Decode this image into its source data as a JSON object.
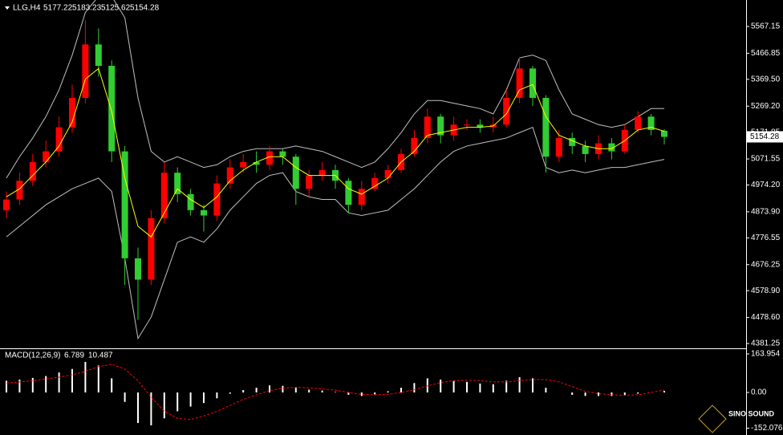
{
  "chart_data": [
    {
      "type": "candlestick",
      "title": "LLG,H4",
      "header_values": [
        5177.22,
        5183.23,
        5125.62,
        5154.28
      ],
      "last": 5154.28,
      "up_color": "#ff0000",
      "down_color": "#32cd32",
      "ma_color": "#ffff00",
      "band_color": "#c0c0c0",
      "ylim": [
        4366.2,
        5666.2
      ],
      "yticks": [
        5567.15,
        5466.85,
        {
          "value": 5369.5,
          "label": "5369.50"
        },
        {
          "value": 5269.2,
          "label": "5269.20"
        },
        5171.85,
        5071.55,
        {
          "value": 4974.2,
          "label": "4974.20"
        },
        {
          "value": 4873.9,
          "label": "4873.90"
        },
        4776.55,
        4676.25,
        {
          "value": 4578.9,
          "label": "4578.90"
        },
        {
          "value": 4478.6,
          "label": "4478.60"
        },
        4381.25
      ],
      "open": [
        4880,
        4920,
        4990,
        5060,
        5100,
        5190,
        5300,
        5500,
        5420,
        5100,
        4700,
        4620,
        4850,
        5020,
        4940,
        4880,
        4860,
        4980,
        5040,
        5060,
        5050,
        5100,
        5080,
        4960,
        5010,
        5030,
        4990,
        4900,
        4960,
        5000,
        5030,
        5090,
        5150,
        5230,
        5160,
        5200,
        5200,
        5190,
        5200,
        5300,
        5410,
        5300,
        5080,
        5150,
        5120,
        5090,
        5130,
        5100,
        5180,
        5230,
        5177.22
      ],
      "high": [
        4950,
        5020,
        5090,
        5140,
        5230,
        5350,
        5590,
        5560,
        5440,
        5120,
        4740,
        4880,
        5060,
        5040,
        4960,
        4900,
        5010,
        5070,
        5090,
        5100,
        5120,
        5110,
        5090,
        5030,
        5060,
        5050,
        5000,
        4990,
        5020,
        5050,
        5110,
        5180,
        5260,
        5240,
        5230,
        5220,
        5220,
        5230,
        5330,
        5450,
        5420,
        5310,
        5180,
        5170,
        5140,
        5160,
        5150,
        5200,
        5250,
        5240,
        5183.23
      ],
      "low": [
        4850,
        4900,
        4970,
        5040,
        5080,
        5170,
        5280,
        5380,
        5060,
        4600,
        4470,
        4600,
        4830,
        4910,
        4860,
        4800,
        4840,
        4960,
        5020,
        5020,
        5030,
        5050,
        4900,
        4930,
        4990,
        4960,
        4870,
        4880,
        4950,
        4980,
        5020,
        5080,
        5130,
        5130,
        5140,
        5180,
        5170,
        5170,
        5190,
        5280,
        5270,
        5020,
        5060,
        5090,
        5060,
        5070,
        5070,
        5090,
        5170,
        5160,
        5125.62
      ],
      "close": [
        4920,
        4990,
        5060,
        5100,
        5190,
        5300,
        5500,
        5420,
        5100,
        4700,
        4620,
        4850,
        5020,
        4940,
        4880,
        4860,
        4980,
        5040,
        5060,
        5050,
        5100,
        5080,
        4960,
        5010,
        5030,
        4990,
        4900,
        4960,
        5000,
        5030,
        5090,
        5150,
        5230,
        5160,
        5200,
        5200,
        5190,
        5200,
        5300,
        5410,
        5300,
        5080,
        5150,
        5120,
        5090,
        5130,
        5100,
        5180,
        5230,
        5180,
        5154.28
      ],
      "ma": [
        4930,
        4960,
        5010,
        5060,
        5120,
        5210,
        5370,
        5410,
        5250,
        5000,
        4820,
        4780,
        4870,
        4960,
        4920,
        4890,
        4930,
        4990,
        5030,
        5060,
        5080,
        5080,
        5040,
        5010,
        5010,
        5010,
        4960,
        4940,
        4970,
        5000,
        5060,
        5100,
        5160,
        5170,
        5180,
        5190,
        5190,
        5195,
        5240,
        5330,
        5350,
        5230,
        5160,
        5140,
        5120,
        5110,
        5110,
        5140,
        5180,
        5190,
        5175
      ],
      "band_upper": [
        5000,
        5080,
        5150,
        5230,
        5330,
        5460,
        5620,
        5680,
        5680,
        5600,
        5300,
        5100,
        5060,
        5080,
        5060,
        5040,
        5050,
        5080,
        5100,
        5110,
        5110,
        5110,
        5120,
        5110,
        5100,
        5080,
        5060,
        5040,
        5060,
        5110,
        5170,
        5240,
        5290,
        5290,
        5280,
        5270,
        5260,
        5240,
        5330,
        5450,
        5460,
        5440,
        5330,
        5240,
        5220,
        5200,
        5190,
        5200,
        5230,
        5260,
        5260
      ],
      "band_lower": [
        4780,
        4820,
        4860,
        4900,
        4930,
        4960,
        4980,
        5000,
        4950,
        4700,
        4400,
        4480,
        4620,
        4760,
        4780,
        4760,
        4810,
        4880,
        4930,
        4980,
        5010,
        5020,
        4950,
        4930,
        4920,
        4920,
        4870,
        4860,
        4870,
        4880,
        4920,
        4960,
        5010,
        5060,
        5100,
        5120,
        5130,
        5140,
        5150,
        5170,
        5190,
        5040,
        5020,
        5030,
        5020,
        5030,
        5040,
        5040,
        5050,
        5060,
        5070
      ],
      "logo": "SINO SOUND"
    },
    {
      "type": "macd",
      "title": "MACD(12,26,9)",
      "header_values": [
        6.789,
        10.487
      ],
      "hist_color": "#ffffff",
      "signal_color": "#ff0000",
      "ylim": [
        -174.2,
        181.03
      ],
      "yticks": [
        163.954,
        {
          "value": 0,
          "label": "0.00"
        },
        -152.076
      ],
      "histogram": [
        50,
        55,
        62,
        70,
        85,
        100,
        130,
        115,
        60,
        -40,
        -130,
        -140,
        -110,
        -80,
        -60,
        -45,
        -25,
        -5,
        10,
        20,
        30,
        28,
        20,
        12,
        8,
        2,
        -10,
        -15,
        -8,
        5,
        20,
        40,
        60,
        55,
        50,
        45,
        38,
        35,
        50,
        65,
        60,
        20,
        0,
        -10,
        -15,
        -15,
        -15,
        -12,
        -5,
        0,
        6.789
      ],
      "signal": [
        40,
        45,
        50,
        58,
        65,
        75,
        90,
        110,
        120,
        100,
        50,
        -20,
        -80,
        -110,
        -115,
        -100,
        -80,
        -55,
        -30,
        -10,
        8,
        18,
        22,
        20,
        15,
        10,
        0,
        -8,
        -10,
        -8,
        0,
        12,
        28,
        42,
        50,
        52,
        50,
        45,
        45,
        50,
        55,
        55,
        45,
        25,
        5,
        -5,
        -10,
        -12,
        -10,
        0,
        10.487
      ]
    }
  ]
}
